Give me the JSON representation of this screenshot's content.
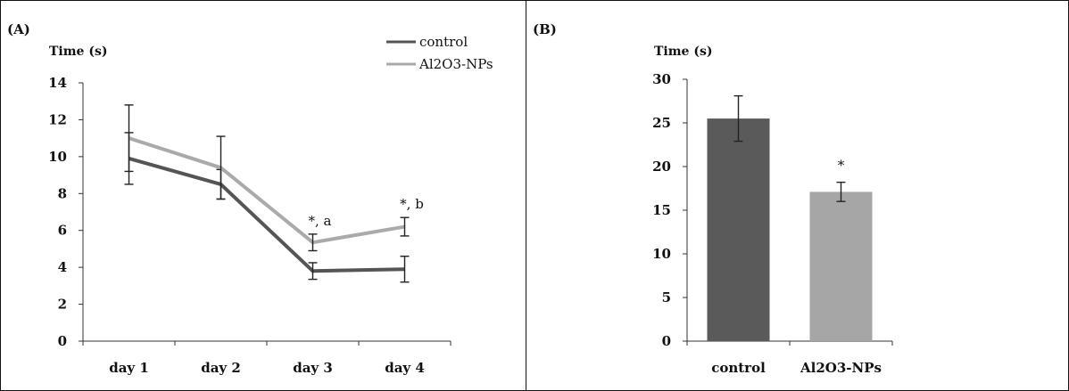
{
  "chart_data": [
    {
      "panel": "(A)",
      "type": "line",
      "ylabel": "Time (s)",
      "xlabel": "",
      "categories": [
        "day 1",
        "day 2",
        "day 3",
        "day 4"
      ],
      "ylim": [
        0,
        14
      ],
      "yticks": [
        "0",
        "2",
        "4",
        "6",
        "8",
        "10",
        "12",
        "14"
      ],
      "grid": false,
      "legend_position": "top-right",
      "series": [
        {
          "name": "control",
          "color": "#555555",
          "values": [
            9.9,
            8.5,
            3.8,
            3.9
          ],
          "errors": [
            1.4,
            0.8,
            0.45,
            0.7
          ]
        },
        {
          "name": "Al2O3-NPs",
          "color": "#aaaaaa",
          "values": [
            11.0,
            9.4,
            5.35,
            6.2
          ],
          "errors": [
            1.8,
            1.7,
            0.45,
            0.5
          ]
        }
      ],
      "annotations": [
        {
          "category": "day 3",
          "text": "*, a"
        },
        {
          "category": "day 4",
          "text": "*, b"
        }
      ]
    },
    {
      "panel": "(B)",
      "type": "bar",
      "ylabel": "Time (s)",
      "xlabel": "",
      "categories": [
        "control",
        "Al2O3-NPs"
      ],
      "values": [
        25.5,
        17.1
      ],
      "errors": [
        2.6,
        1.1
      ],
      "colors": [
        "#5a5a5a",
        "#a6a6a6"
      ],
      "ylim": [
        0,
        30
      ],
      "yticks": [
        "0",
        "5",
        "10",
        "15",
        "20",
        "25",
        "30"
      ],
      "grid": false,
      "annotations": [
        {
          "category": "Al2O3-NPs",
          "text": "*"
        }
      ]
    }
  ]
}
